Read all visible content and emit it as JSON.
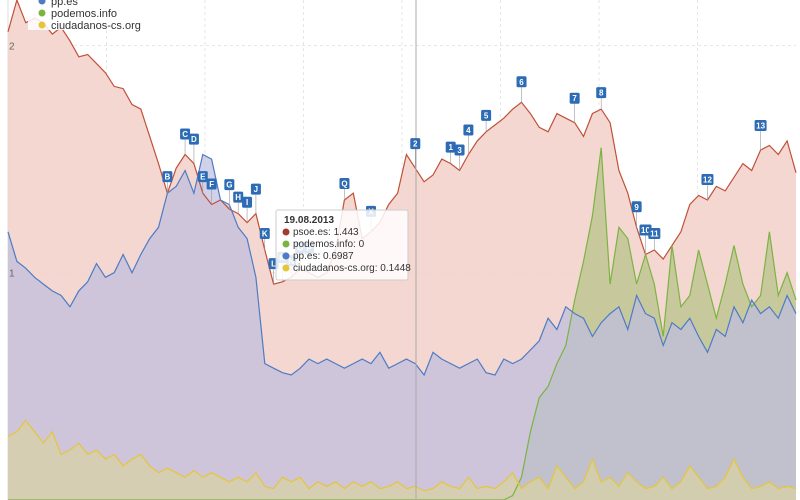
{
  "chart_data": {
    "type": "area",
    "ylim": [
      0,
      2.2
    ],
    "yticks": [
      {
        "value": 1,
        "label": "1"
      },
      {
        "value": 2,
        "label": "2"
      }
    ],
    "grid": true,
    "legend_position": "top-left",
    "series": [
      {
        "name": "psoe.es",
        "color": "#c0503a",
        "fill": "#f2d3cb",
        "fill_opacity": 0.9,
        "values": [
          2.06,
          2.2,
          2.1,
          2.12,
          2.1,
          2.05,
          2.08,
          2.02,
          1.95,
          1.96,
          1.92,
          1.88,
          1.82,
          1.81,
          1.74,
          1.72,
          1.6,
          1.48,
          1.35,
          1.46,
          1.52,
          1.48,
          1.35,
          1.3,
          1.32,
          1.28,
          1.26,
          1.22,
          1.26,
          1.1,
          0.95,
          0.96,
          0.98,
          1.02,
          1.0,
          0.98,
          1.0,
          1.1,
          1.32,
          1.35,
          1.15,
          1.18,
          1.22,
          1.3,
          1.35,
          1.52,
          1.46,
          1.4,
          1.43,
          1.5,
          1.48,
          1.45,
          1.52,
          1.58,
          1.62,
          1.65,
          1.68,
          1.72,
          1.75,
          1.7,
          1.64,
          1.62,
          1.7,
          1.68,
          1.66,
          1.6,
          1.7,
          1.72,
          1.66,
          1.45,
          1.35,
          1.2,
          1.08,
          1.1,
          1.06,
          1.12,
          1.18,
          1.3,
          1.34,
          1.32,
          1.38,
          1.36,
          1.42,
          1.48,
          1.45,
          1.54,
          1.56,
          1.52,
          1.58,
          1.44
        ],
        "flags": [
          "B",
          "C",
          "D",
          "E",
          "F",
          "G",
          "H",
          "I",
          "J",
          "K",
          "L",
          "M",
          "N",
          "O",
          "P",
          "Q",
          "X",
          "2",
          "1",
          "3",
          "4",
          "5",
          "6",
          "7",
          "8",
          "9",
          "10",
          "11",
          "12",
          "13"
        ]
      },
      {
        "name": "podemos.info",
        "color": "#7cb342",
        "fill": "#b8c48c",
        "fill_opacity": 0.75,
        "values": [
          0,
          0,
          0,
          0,
          0,
          0,
          0,
          0,
          0,
          0,
          0,
          0,
          0,
          0,
          0,
          0,
          0,
          0,
          0,
          0,
          0,
          0,
          0,
          0,
          0,
          0,
          0,
          0,
          0,
          0,
          0,
          0,
          0,
          0,
          0,
          0,
          0,
          0,
          0,
          0,
          0,
          0,
          0,
          0,
          0,
          0,
          0,
          0,
          0,
          0,
          0,
          0,
          0,
          0,
          0,
          0,
          0,
          0.02,
          0.1,
          0.3,
          0.45,
          0.5,
          0.6,
          0.68,
          0.88,
          1.05,
          1.25,
          1.55,
          0.95,
          1.2,
          1.15,
          0.95,
          1.08,
          0.95,
          0.72,
          1.12,
          0.85,
          0.9,
          1.1,
          0.95,
          0.8,
          0.95,
          1.12,
          0.95,
          0.85,
          0.9,
          1.18,
          0.9,
          1.0,
          0.88
        ]
      },
      {
        "name": "pp.es",
        "color": "#4e7bc4",
        "fill": "#bdbde0",
        "fill_opacity": 0.7,
        "values": [
          1.18,
          1.05,
          1.02,
          0.98,
          0.95,
          0.92,
          0.9,
          0.85,
          0.92,
          0.96,
          1.04,
          0.98,
          1.0,
          1.08,
          1.0,
          1.08,
          1.15,
          1.2,
          1.35,
          1.38,
          1.45,
          1.35,
          1.52,
          1.5,
          1.32,
          1.3,
          1.2,
          1.15,
          0.98,
          0.6,
          0.58,
          0.56,
          0.55,
          0.58,
          0.62,
          0.6,
          0.62,
          0.6,
          0.58,
          0.6,
          0.62,
          0.6,
          0.65,
          0.58,
          0.6,
          0.62,
          0.6,
          0.55,
          0.65,
          0.62,
          0.6,
          0.58,
          0.6,
          0.62,
          0.56,
          0.55,
          0.62,
          0.6,
          0.62,
          0.66,
          0.7,
          0.8,
          0.75,
          0.85,
          0.82,
          0.8,
          0.72,
          0.78,
          0.82,
          0.85,
          0.75,
          0.9,
          0.82,
          0.8,
          0.68,
          0.78,
          0.75,
          0.8,
          0.72,
          0.65,
          0.75,
          0.72,
          0.85,
          0.78,
          0.88,
          0.82,
          0.85,
          0.8,
          0.9,
          0.82
        ]
      },
      {
        "name": "ciudadanos-cs.org",
        "color": "#e6c53a",
        "fill": "#d8d0a6",
        "fill_opacity": 0.75,
        "values": [
          0.28,
          0.3,
          0.35,
          0.3,
          0.25,
          0.3,
          0.2,
          0.22,
          0.25,
          0.2,
          0.22,
          0.18,
          0.2,
          0.15,
          0.18,
          0.2,
          0.15,
          0.12,
          0.14,
          0.12,
          0.1,
          0.13,
          0.1,
          0.12,
          0.1,
          0.08,
          0.1,
          0.08,
          0.12,
          0.06,
          0.05,
          0.1,
          0.08,
          0.1,
          0.05,
          0.08,
          0.06,
          0.08,
          0.05,
          0.08,
          0.06,
          0.08,
          0.05,
          0.06,
          0.08,
          0.05,
          0.06,
          0.04,
          0.05,
          0.08,
          0.06,
          0.05,
          0.1,
          0.05,
          0.06,
          0.05,
          0.08,
          0.12,
          0.05,
          0.08,
          0.1,
          0.05,
          0.15,
          0.1,
          0.05,
          0.08,
          0.18,
          0.08,
          0.1,
          0.06,
          0.12,
          0.08,
          0.05,
          0.06,
          0.1,
          0.05,
          0.08,
          0.15,
          0.1,
          0.05,
          0.06,
          0.1,
          0.18,
          0.1,
          0.05,
          0.06,
          0.08,
          0.05,
          0.06,
          0.05
        ]
      }
    ],
    "tooltip": {
      "date": "19.08.2013",
      "rows": [
        {
          "label": "psoe.es: 1.443",
          "color": "#a13a30"
        },
        {
          "label": "podemos.info: 0",
          "color": "#7cb342"
        },
        {
          "label": "pp.es: 0.6987",
          "color": "#4e7bc4"
        },
        {
          "label": "ciudadanos-cs.org: 0.1448",
          "color": "#e6c53a"
        }
      ]
    },
    "legend": [
      {
        "label": "pp.es",
        "color": "#4e7bc4"
      },
      {
        "label": "podemos.info",
        "color": "#7cb342"
      },
      {
        "label": "ciudadanos-cs.org",
        "color": "#e6c53a"
      }
    ],
    "flag_color": "#2d6cb5"
  }
}
